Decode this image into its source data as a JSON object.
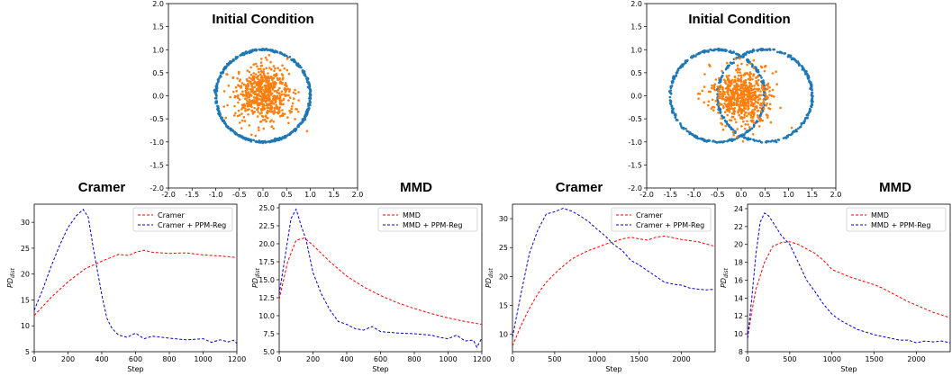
{
  "chart_data": [
    {
      "id": "scatter-left",
      "type": "scatter",
      "title": "Initial Condition",
      "xlim": [
        -2.0,
        2.0
      ],
      "ylim": [
        -2.0,
        2.0
      ],
      "xticks": [
        "-2.0",
        "-1.5",
        "-1.0",
        "-0.5",
        "0.0",
        "0.5",
        "1.0",
        "1.5",
        "2.0"
      ],
      "yticks": [
        "-2.0",
        "-1.5",
        "-1.0",
        "-0.5",
        "0.0",
        "0.5",
        "1.0",
        "1.5",
        "2.0"
      ],
      "series": [
        {
          "shape": "ring",
          "center": [
            0.0,
            0.0
          ],
          "radius": 1.0,
          "count": 520,
          "color": "#1f77b4"
        },
        {
          "shape": "gaussian",
          "center": [
            0.0,
            0.0
          ],
          "std": 0.3,
          "count": 600,
          "color": "#ff7f0e"
        }
      ]
    },
    {
      "id": "scatter-right",
      "type": "scatter",
      "title": "Initial Condition",
      "xlim": [
        -2.0,
        2.0
      ],
      "ylim": [
        -2.0,
        2.0
      ],
      "xticks": [
        "-2.0",
        "-1.5",
        "-1.0",
        "-0.5",
        "0.0",
        "0.5",
        "1.0",
        "1.5",
        "2.0"
      ],
      "yticks": [
        "-2.0",
        "-1.5",
        "-1.0",
        "-0.5",
        "0.0",
        "0.5",
        "1.0",
        "1.5",
        "2.0"
      ],
      "series": [
        {
          "shape": "ring",
          "center": [
            -0.5,
            0.0
          ],
          "radius": 1.0,
          "count": 340,
          "color": "#1f77b4"
        },
        {
          "shape": "ring",
          "center": [
            0.5,
            0.0
          ],
          "radius": 1.0,
          "count": 340,
          "color": "#1f77b4"
        },
        {
          "shape": "gaussian",
          "center": [
            0.0,
            0.0
          ],
          "std": 0.3,
          "count": 600,
          "color": "#ff7f0e"
        }
      ]
    },
    {
      "id": "line-1",
      "type": "line",
      "title": "Cramer",
      "xlabel": "Step",
      "ylabel": "PD_dist",
      "xlim": [
        0,
        1200
      ],
      "ylim": [
        5,
        33.5
      ],
      "xticks": [
        0,
        200,
        400,
        600,
        800,
        1000,
        1200
      ],
      "yticks": [
        5,
        10,
        15,
        20,
        25,
        30
      ],
      "legend": "top-right",
      "series": [
        {
          "name": "Cramer",
          "color": "#ff0000",
          "x": [
            0,
            100,
            200,
            300,
            400,
            500,
            560,
            600,
            650,
            700,
            800,
            900,
            1000,
            1100,
            1200
          ],
          "y": [
            12,
            15.5,
            18.5,
            21,
            22.5,
            23.8,
            23.6,
            24.2,
            24.6,
            24.2,
            24,
            24.1,
            23.7,
            23.5,
            23.2
          ]
        },
        {
          "name": "Cramer + PPM-Reg",
          "color": "#0000cc",
          "x": [
            0,
            50,
            100,
            150,
            200,
            250,
            290,
            320,
            350,
            400,
            430,
            460,
            500,
            550,
            600,
            650,
            700,
            800,
            900,
            1000,
            1050,
            1100,
            1150,
            1180,
            1200
          ],
          "y": [
            13,
            17,
            21.5,
            25.5,
            29,
            31.3,
            32.5,
            31,
            25,
            16,
            11.5,
            9.5,
            8.2,
            7.8,
            8.6,
            7.5,
            8,
            7.6,
            7.3,
            7.5,
            6.8,
            7.3,
            6.9,
            7.2,
            6.6
          ]
        }
      ]
    },
    {
      "id": "line-2",
      "type": "line",
      "title": "MMD",
      "xlabel": "Step",
      "ylabel": "PD_dist",
      "xlim": [
        0,
        1200
      ],
      "ylim": [
        5,
        25.5
      ],
      "xticks": [
        0,
        200,
        400,
        600,
        800,
        1000,
        1200
      ],
      "yticks": [
        5.0,
        7.5,
        10.0,
        12.5,
        15.0,
        17.5,
        20.0,
        22.5,
        25.0
      ],
      "legend": "top-right",
      "series": [
        {
          "name": "MMD",
          "color": "#ff0000",
          "x": [
            0,
            50,
            100,
            150,
            200,
            300,
            400,
            500,
            600,
            700,
            800,
            900,
            1000,
            1100,
            1200
          ],
          "y": [
            12.3,
            17.5,
            20.5,
            20.8,
            19.8,
            17.5,
            15.5,
            14,
            12.8,
            11.8,
            11,
            10.3,
            9.7,
            9.2,
            8.8
          ]
        },
        {
          "name": "MMD + PPM-Reg",
          "color": "#0000cc",
          "x": [
            0,
            40,
            70,
            100,
            130,
            160,
            200,
            250,
            300,
            350,
            400,
            450,
            500,
            550,
            600,
            700,
            800,
            900,
            950,
            1000,
            1050,
            1100,
            1150,
            1170,
            1200
          ],
          "y": [
            13,
            19,
            23.5,
            24.8,
            22.5,
            20.5,
            16,
            13,
            10.8,
            9.2,
            8.8,
            8.2,
            8.0,
            8.5,
            7.8,
            7.6,
            7.5,
            7.3,
            7.0,
            6.8,
            7.3,
            6.5,
            6.6,
            5.6,
            6.9
          ]
        }
      ]
    },
    {
      "id": "line-3",
      "type": "line",
      "title": "Cramer",
      "xlabel": "Step",
      "ylabel": "PD_dist",
      "xlim": [
        0,
        2400
      ],
      "ylim": [
        7,
        32.5
      ],
      "xticks": [
        0,
        500,
        1000,
        1500,
        2000
      ],
      "yticks": [
        10,
        15,
        20,
        25,
        30
      ],
      "legend": "top-right",
      "series": [
        {
          "name": "Cramer",
          "color": "#ff0000",
          "x": [
            0,
            100,
            200,
            300,
            400,
            500,
            600,
            700,
            800,
            900,
            1000,
            1100,
            1200,
            1300,
            1400,
            1500,
            1600,
            1700,
            1800,
            1900,
            2000,
            2100,
            2200,
            2300,
            2400
          ],
          "y": [
            8,
            11.5,
            14.5,
            17,
            19,
            20.5,
            21.8,
            23,
            23.8,
            24.5,
            25,
            25.6,
            26,
            26.5,
            26.8,
            26.5,
            26.3,
            26.8,
            27,
            26.7,
            26.4,
            26.2,
            26,
            25.6,
            25.2
          ]
        },
        {
          "name": "Cramer + PPM-Reg",
          "color": "#0000cc",
          "x": [
            0,
            100,
            200,
            300,
            400,
            500,
            600,
            700,
            800,
            900,
            1000,
            1100,
            1200,
            1300,
            1400,
            1500,
            1600,
            1700,
            1800,
            1900,
            2000,
            2100,
            2200,
            2300,
            2400
          ],
          "y": [
            9.5,
            17,
            24,
            28,
            30.8,
            31.2,
            31.8,
            31.3,
            30.5,
            29.5,
            28.2,
            27,
            25.5,
            24.5,
            22.8,
            22,
            21,
            20,
            19,
            18.7,
            18.5,
            18,
            17.8,
            17.7,
            17.8
          ]
        }
      ]
    },
    {
      "id": "line-4",
      "type": "line",
      "title": "MMD",
      "xlabel": "Step",
      "ylabel": "PD_dist",
      "xlim": [
        0,
        2400
      ],
      "ylim": [
        8,
        24.5
      ],
      "xticks": [
        0,
        500,
        1000,
        1500,
        2000
      ],
      "yticks": [
        8,
        10,
        12,
        14,
        16,
        18,
        20,
        22,
        24
      ],
      "legend": "top-right",
      "series": [
        {
          "name": "MMD",
          "color": "#ff0000",
          "x": [
            0,
            50,
            100,
            200,
            300,
            400,
            500,
            600,
            700,
            800,
            900,
            1000,
            1100,
            1200,
            1300,
            1400,
            1500,
            1600,
            1700,
            1800,
            1900,
            2000,
            2100,
            2200,
            2300,
            2400
          ],
          "y": [
            9.5,
            12.5,
            15,
            18,
            19.8,
            20.2,
            20.3,
            20,
            19.5,
            19,
            18.2,
            17.2,
            16.8,
            16.4,
            16.1,
            15.8,
            15.5,
            15.1,
            14.6,
            14.1,
            13.6,
            13.2,
            12.8,
            12.4,
            12.1,
            11.8
          ]
        },
        {
          "name": "MMD + PPM-Reg",
          "color": "#0000cc",
          "x": [
            0,
            50,
            100,
            150,
            200,
            250,
            300,
            400,
            500,
            600,
            700,
            800,
            900,
            1000,
            1100,
            1200,
            1300,
            1400,
            1500,
            1600,
            1700,
            1800,
            1900,
            2000,
            2100,
            2200,
            2300,
            2400
          ],
          "y": [
            9.5,
            14,
            19,
            22.5,
            23.5,
            23.2,
            22.5,
            21,
            20,
            18,
            16,
            14.7,
            13.3,
            12.2,
            11.5,
            11,
            10.5,
            10.2,
            9.9,
            9.7,
            9.5,
            9.3,
            9.3,
            9.0,
            9.2,
            9.1,
            9.2,
            9.0
          ]
        }
      ]
    }
  ]
}
